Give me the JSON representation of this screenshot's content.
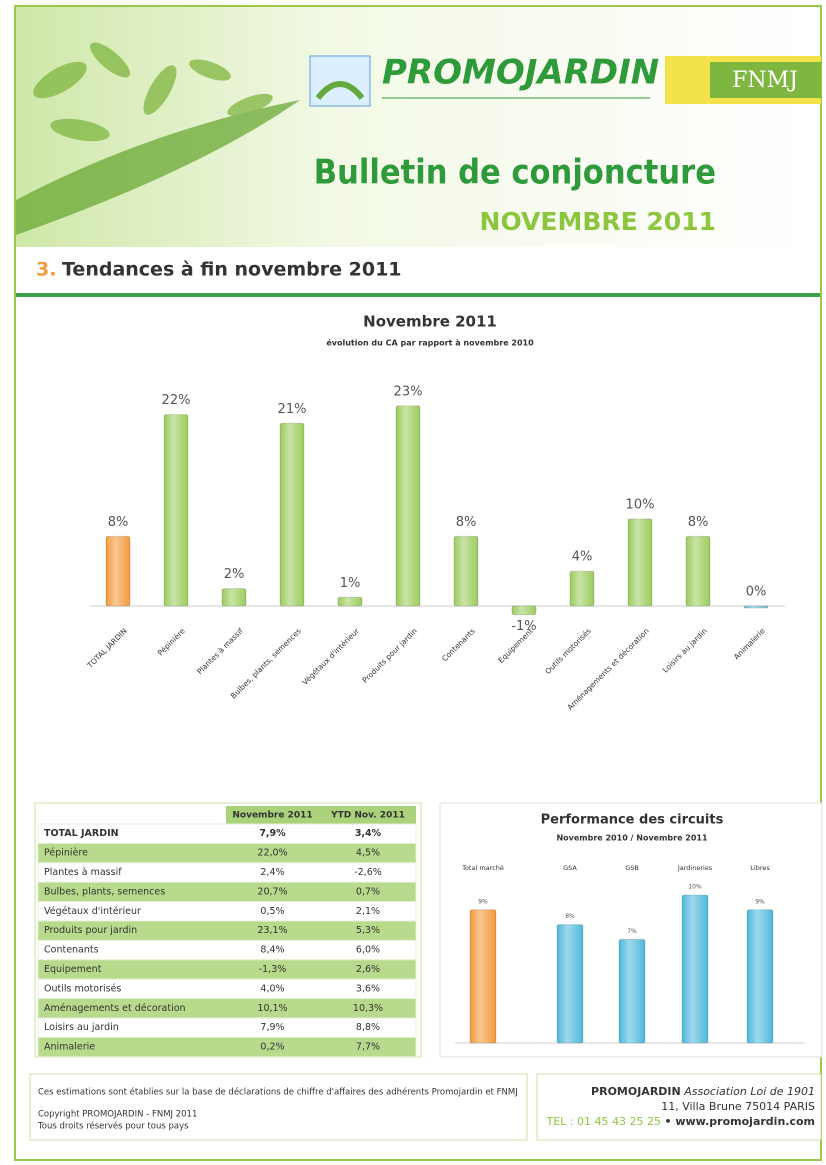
{
  "header": {
    "brand": "PROMOJARDIN",
    "partner": "FNMJ",
    "title": "Bulletin de conjoncture",
    "subtitle": "NOVEMBRE 2011",
    "section_number": "3.",
    "section_title": "Tendances à fin novembre 2011"
  },
  "chart_data": [
    {
      "type": "bar",
      "title": "Novembre 2011",
      "subtitle": "évolution du CA par rapport à novembre 2010",
      "categories": [
        "TOTAL JARDIN",
        "Pépinière",
        "Plantes à massif",
        "Bulbes, plants, semences",
        "Végétaux d'intérieur",
        "Produits pour jardin",
        "Contenants",
        "Equipement",
        "Outils motorisés",
        "Aménagements et décoration",
        "Loisirs au jardin",
        "Animalerie"
      ],
      "values": [
        8,
        22,
        2,
        21,
        1,
        23,
        8,
        -1,
        4,
        10,
        8,
        0
      ],
      "value_labels": [
        "8%",
        "22%",
        "2%",
        "21%",
        "1%",
        "23%",
        "8%",
        "-1%",
        "4%",
        "10%",
        "8%",
        "0%"
      ],
      "colors": [
        "#f39a3c",
        "#9ccc5e",
        "#9ccc5e",
        "#9ccc5e",
        "#9ccc5e",
        "#9ccc5e",
        "#9ccc5e",
        "#9ccc5e",
        "#9ccc5e",
        "#9ccc5e",
        "#9ccc5e",
        "#6cc4d4"
      ]
    },
    {
      "type": "bar",
      "title": "Performance des circuits",
      "subtitle": "Novembre 2010 / Novembre 2011",
      "categories": [
        "Total marché",
        "GSA",
        "GSB",
        "Jardineries",
        "Libres"
      ],
      "values": [
        9,
        8,
        7,
        10,
        9
      ],
      "value_labels": [
        "9%",
        "8%",
        "7%",
        "10%",
        "9%"
      ],
      "colors": [
        "#f39a3c",
        "#4fb9dc",
        "#4fb9dc",
        "#4fb9dc",
        "#4fb9dc"
      ]
    }
  ],
  "table": {
    "columns": [
      "Novembre 2011",
      "YTD Nov. 2011"
    ],
    "rows": [
      [
        "TOTAL JARDIN",
        "7,9%",
        "3,4%"
      ],
      [
        "Pépinière",
        "22,0%",
        "4,5%"
      ],
      [
        "Plantes à massif",
        "2,4%",
        "-2,6%"
      ],
      [
        "Bulbes, plants, semences",
        "20,7%",
        "0,7%"
      ],
      [
        "Végétaux d'intérieur",
        "0,5%",
        "2,1%"
      ],
      [
        "Produits pour jardin",
        "23,1%",
        "5,3%"
      ],
      [
        "Contenants",
        "8,4%",
        "6,0%"
      ],
      [
        "Equipement",
        "-1,3%",
        "2,6%"
      ],
      [
        "Outils motorisés",
        "4,0%",
        "3,6%"
      ],
      [
        "Aménagements et décoration",
        "10,1%",
        "10,3%"
      ],
      [
        "Loisirs au jardin",
        "7,9%",
        "8,8%"
      ],
      [
        "Animalerie",
        "0,2%",
        "7,7%"
      ]
    ]
  },
  "footer": {
    "note": "Ces estimations sont établies sur la base de déclarations de chiffre d'affaires des adhérents Promojardin et FNMJ",
    "copyright": "Copyright PROMOJARDIN - FNMJ 2011",
    "rights": "Tous droits réservés pour tous pays",
    "org": "PROMOJARDIN",
    "org_type": "Association Loi de 1901",
    "address": "11, Villa Brune 75014 PARIS",
    "phone": "TEL : 01 45 43 25 25",
    "web": "• www.promojardin.com"
  }
}
